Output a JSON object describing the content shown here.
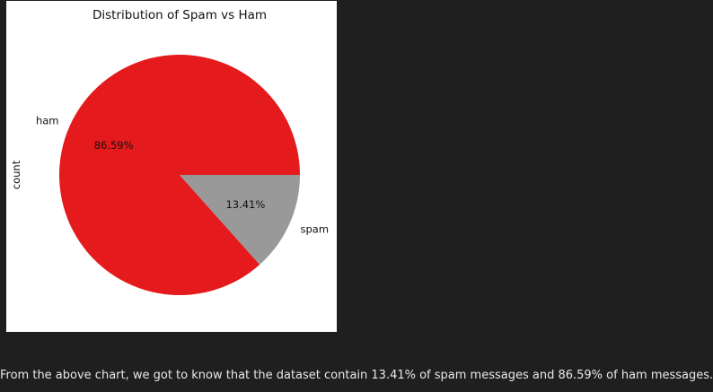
{
  "chart_data": {
    "type": "pie",
    "title": "Distribution of Spam vs Ham",
    "ylabel": "count",
    "categories": [
      "ham",
      "spam"
    ],
    "values": [
      86.59,
      13.41
    ],
    "percent_labels": [
      "86.59%",
      "13.41%"
    ],
    "colors": [
      "#e41a1c",
      "#999999"
    ]
  },
  "caption": {
    "text": "From the above chart, we got to know that the dataset contain 13.41% of spam messages and 86.59% of ham messages."
  }
}
